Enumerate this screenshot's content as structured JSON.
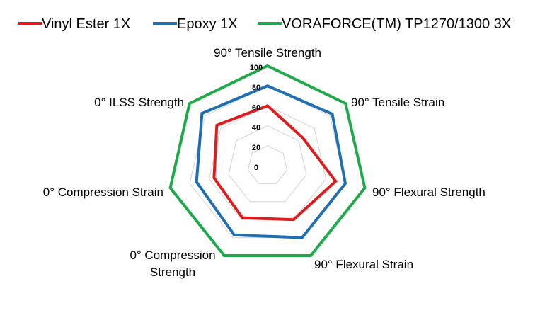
{
  "chart_data": {
    "type": "radar",
    "title": "",
    "axes": [
      [
        "90° Tensile Strength"
      ],
      [
        "90° Tensile Strain"
      ],
      [
        "90° Flexural Strength"
      ],
      [
        "90° Flexural Strain"
      ],
      [
        "0° Compression",
        "Strength"
      ],
      [
        "0° Compression Strain"
      ],
      [
        "0° ILSS Strength"
      ]
    ],
    "range": [
      0,
      100
    ],
    "ticks": [
      "0",
      "20",
      "40",
      "60",
      "80",
      "100"
    ],
    "tick_values": [
      0,
      20,
      40,
      60,
      80,
      100
    ],
    "legend_position": "top",
    "series": [
      {
        "name": "Vinyl Ester 1X",
        "color": "#e31a1c",
        "values": [
          60,
          45,
          70,
          60,
          58,
          55,
          65
        ]
      },
      {
        "name": "Epoxy 1X",
        "color": "#1f6fb4",
        "values": [
          80,
          83,
          80,
          80,
          77,
          73,
          84
        ]
      },
      {
        "name": "VORAFORCE(TM) TP1270/1300  3X",
        "color": "#1faa4a",
        "values": [
          100,
          100,
          100,
          100,
          100,
          100,
          100
        ]
      }
    ],
    "grid_color": "#d9d9d9"
  }
}
